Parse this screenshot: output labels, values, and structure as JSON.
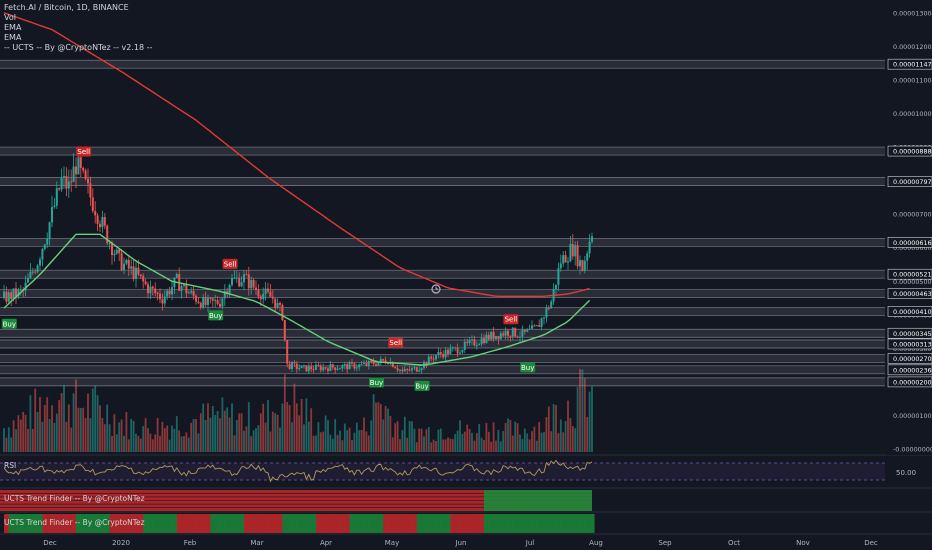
{
  "legend": {
    "symbol": "Fetch.AI / Bitcoin, 1D, BINANCE",
    "vol": "Vol",
    "ema1": "EMA",
    "ema2": "EMA",
    "ucts": "-- UCTS -- By @CryptoNTez -- v2.18 --"
  },
  "panes": {
    "rsi_label": "RSI",
    "rsi_level": "50.00",
    "trend1_label": "UCTS Trend Finder -- By @CryptoNTez",
    "trend2_label": "UCTS Trend Finder -- By @CryptoNTez"
  },
  "colors": {
    "background": "#131722",
    "up": "#26a69a",
    "down": "#ef5350",
    "ema_slow": "#e53935",
    "ema_fast": "#66d17a",
    "zone": "#7a7f8a",
    "buy": "#1b8a3a",
    "sell": "#c62828",
    "rsi": "#b59a5a",
    "rsi_band": "#7e57c2"
  },
  "chart_data": {
    "type": "candlestick",
    "title": "Fetch.AI / Bitcoin, 1D, BINANCE",
    "x_ticks": [
      "Dec",
      "2020",
      "Feb",
      "Mar",
      "Apr",
      "May",
      "Jun",
      "Jul",
      "Aug",
      "Sep",
      "Oct",
      "Nov",
      "Dec"
    ],
    "y_ticks": [
      "0.00001300",
      "0.00001200",
      "0.00001100",
      "0.00001000",
      "0.00000900",
      "0.00000800",
      "0.00000700",
      "0.00000600",
      "0.00000500",
      "0.00000400",
      "0.00000300",
      "0.00000200",
      "0.00000100",
      "-0.00000000"
    ],
    "price_levels": [
      "0.00001147",
      "0.00000888",
      "0.00000797",
      "0.00000616",
      "0.00000521",
      "0.00000463",
      "0.00000410",
      "0.00000345",
      "0.00000313",
      "0.00000270",
      "0.00000236",
      "0.00000200"
    ],
    "price_path": [
      [
        0,
        450
      ],
      [
        8,
        470
      ],
      [
        14,
        560
      ],
      [
        18,
        650
      ],
      [
        24,
        800
      ],
      [
        27,
        780
      ],
      [
        30,
        850
      ],
      [
        33,
        800
      ],
      [
        38,
        720
      ],
      [
        42,
        650
      ],
      [
        48,
        560
      ],
      [
        55,
        520
      ],
      [
        60,
        480
      ],
      [
        66,
        450
      ],
      [
        72,
        500
      ],
      [
        78,
        460
      ],
      [
        84,
        430
      ],
      [
        90,
        440
      ],
      [
        94,
        500
      ],
      [
        100,
        510
      ],
      [
        106,
        470
      ],
      [
        112,
        450
      ],
      [
        116,
        400
      ],
      [
        118,
        250
      ],
      [
        125,
        240
      ],
      [
        140,
        245
      ],
      [
        150,
        250
      ],
      [
        160,
        265
      ],
      [
        166,
        230
      ],
      [
        172,
        240
      ],
      [
        180,
        280
      ],
      [
        190,
        300
      ],
      [
        200,
        330
      ],
      [
        210,
        350
      ],
      [
        216,
        340
      ],
      [
        222,
        360
      ],
      [
        228,
        440
      ],
      [
        232,
        560
      ],
      [
        237,
        600
      ],
      [
        241,
        540
      ],
      [
        245,
        650
      ]
    ],
    "ema_fast": [
      [
        0,
        420
      ],
      [
        15,
        520
      ],
      [
        30,
        640
      ],
      [
        40,
        640
      ],
      [
        55,
        560
      ],
      [
        70,
        500
      ],
      [
        90,
        470
      ],
      [
        105,
        440
      ],
      [
        118,
        390
      ],
      [
        135,
        320
      ],
      [
        155,
        260
      ],
      [
        175,
        250
      ],
      [
        195,
        275
      ],
      [
        210,
        305
      ],
      [
        225,
        340
      ],
      [
        235,
        380
      ],
      [
        245,
        450
      ]
    ],
    "ema_slow": [
      [
        0,
        1300
      ],
      [
        20,
        1250
      ],
      [
        50,
        1120
      ],
      [
        80,
        980
      ],
      [
        110,
        810
      ],
      [
        140,
        660
      ],
      [
        165,
        540
      ],
      [
        185,
        480
      ],
      [
        205,
        455
      ],
      [
        225,
        455
      ],
      [
        235,
        462
      ],
      [
        245,
        480
      ]
    ],
    "volume": [
      [
        0,
        30
      ],
      [
        10,
        45
      ],
      [
        20,
        70
      ],
      [
        30,
        60
      ],
      [
        40,
        55
      ],
      [
        50,
        35
      ],
      [
        60,
        30
      ],
      [
        70,
        35
      ],
      [
        80,
        40
      ],
      [
        90,
        45
      ],
      [
        100,
        40
      ],
      [
        110,
        45
      ],
      [
        118,
        70
      ],
      [
        130,
        35
      ],
      [
        140,
        25
      ],
      [
        150,
        30
      ],
      [
        156,
        65
      ],
      [
        165,
        30
      ],
      [
        175,
        25
      ],
      [
        185,
        30
      ],
      [
        195,
        25
      ],
      [
        205,
        30
      ],
      [
        215,
        25
      ],
      [
        225,
        35
      ],
      [
        230,
        50
      ],
      [
        237,
        60
      ],
      [
        242,
        75
      ]
    ],
    "signals": [
      {
        "label": "Buy",
        "x": 2,
        "price": 400,
        "dir": "buy"
      },
      {
        "label": "Sell",
        "x": 33,
        "price": 860,
        "dir": "sell"
      },
      {
        "label": "Buy",
        "x": 88,
        "price": 425,
        "dir": "buy"
      },
      {
        "label": "Sell",
        "x": 94,
        "price": 525,
        "dir": "sell"
      },
      {
        "label": "Buy",
        "x": 155,
        "price": 225,
        "dir": "buy"
      },
      {
        "label": "Sell",
        "x": 163,
        "price": 290,
        "dir": "sell"
      },
      {
        "label": "Buy",
        "x": 174,
        "price": 215,
        "dir": "buy"
      },
      {
        "label": "Sell",
        "x": 211,
        "price": 360,
        "dir": "sell"
      },
      {
        "label": "Buy",
        "x": 218,
        "price": 270,
        "dir": "buy"
      }
    ]
  }
}
